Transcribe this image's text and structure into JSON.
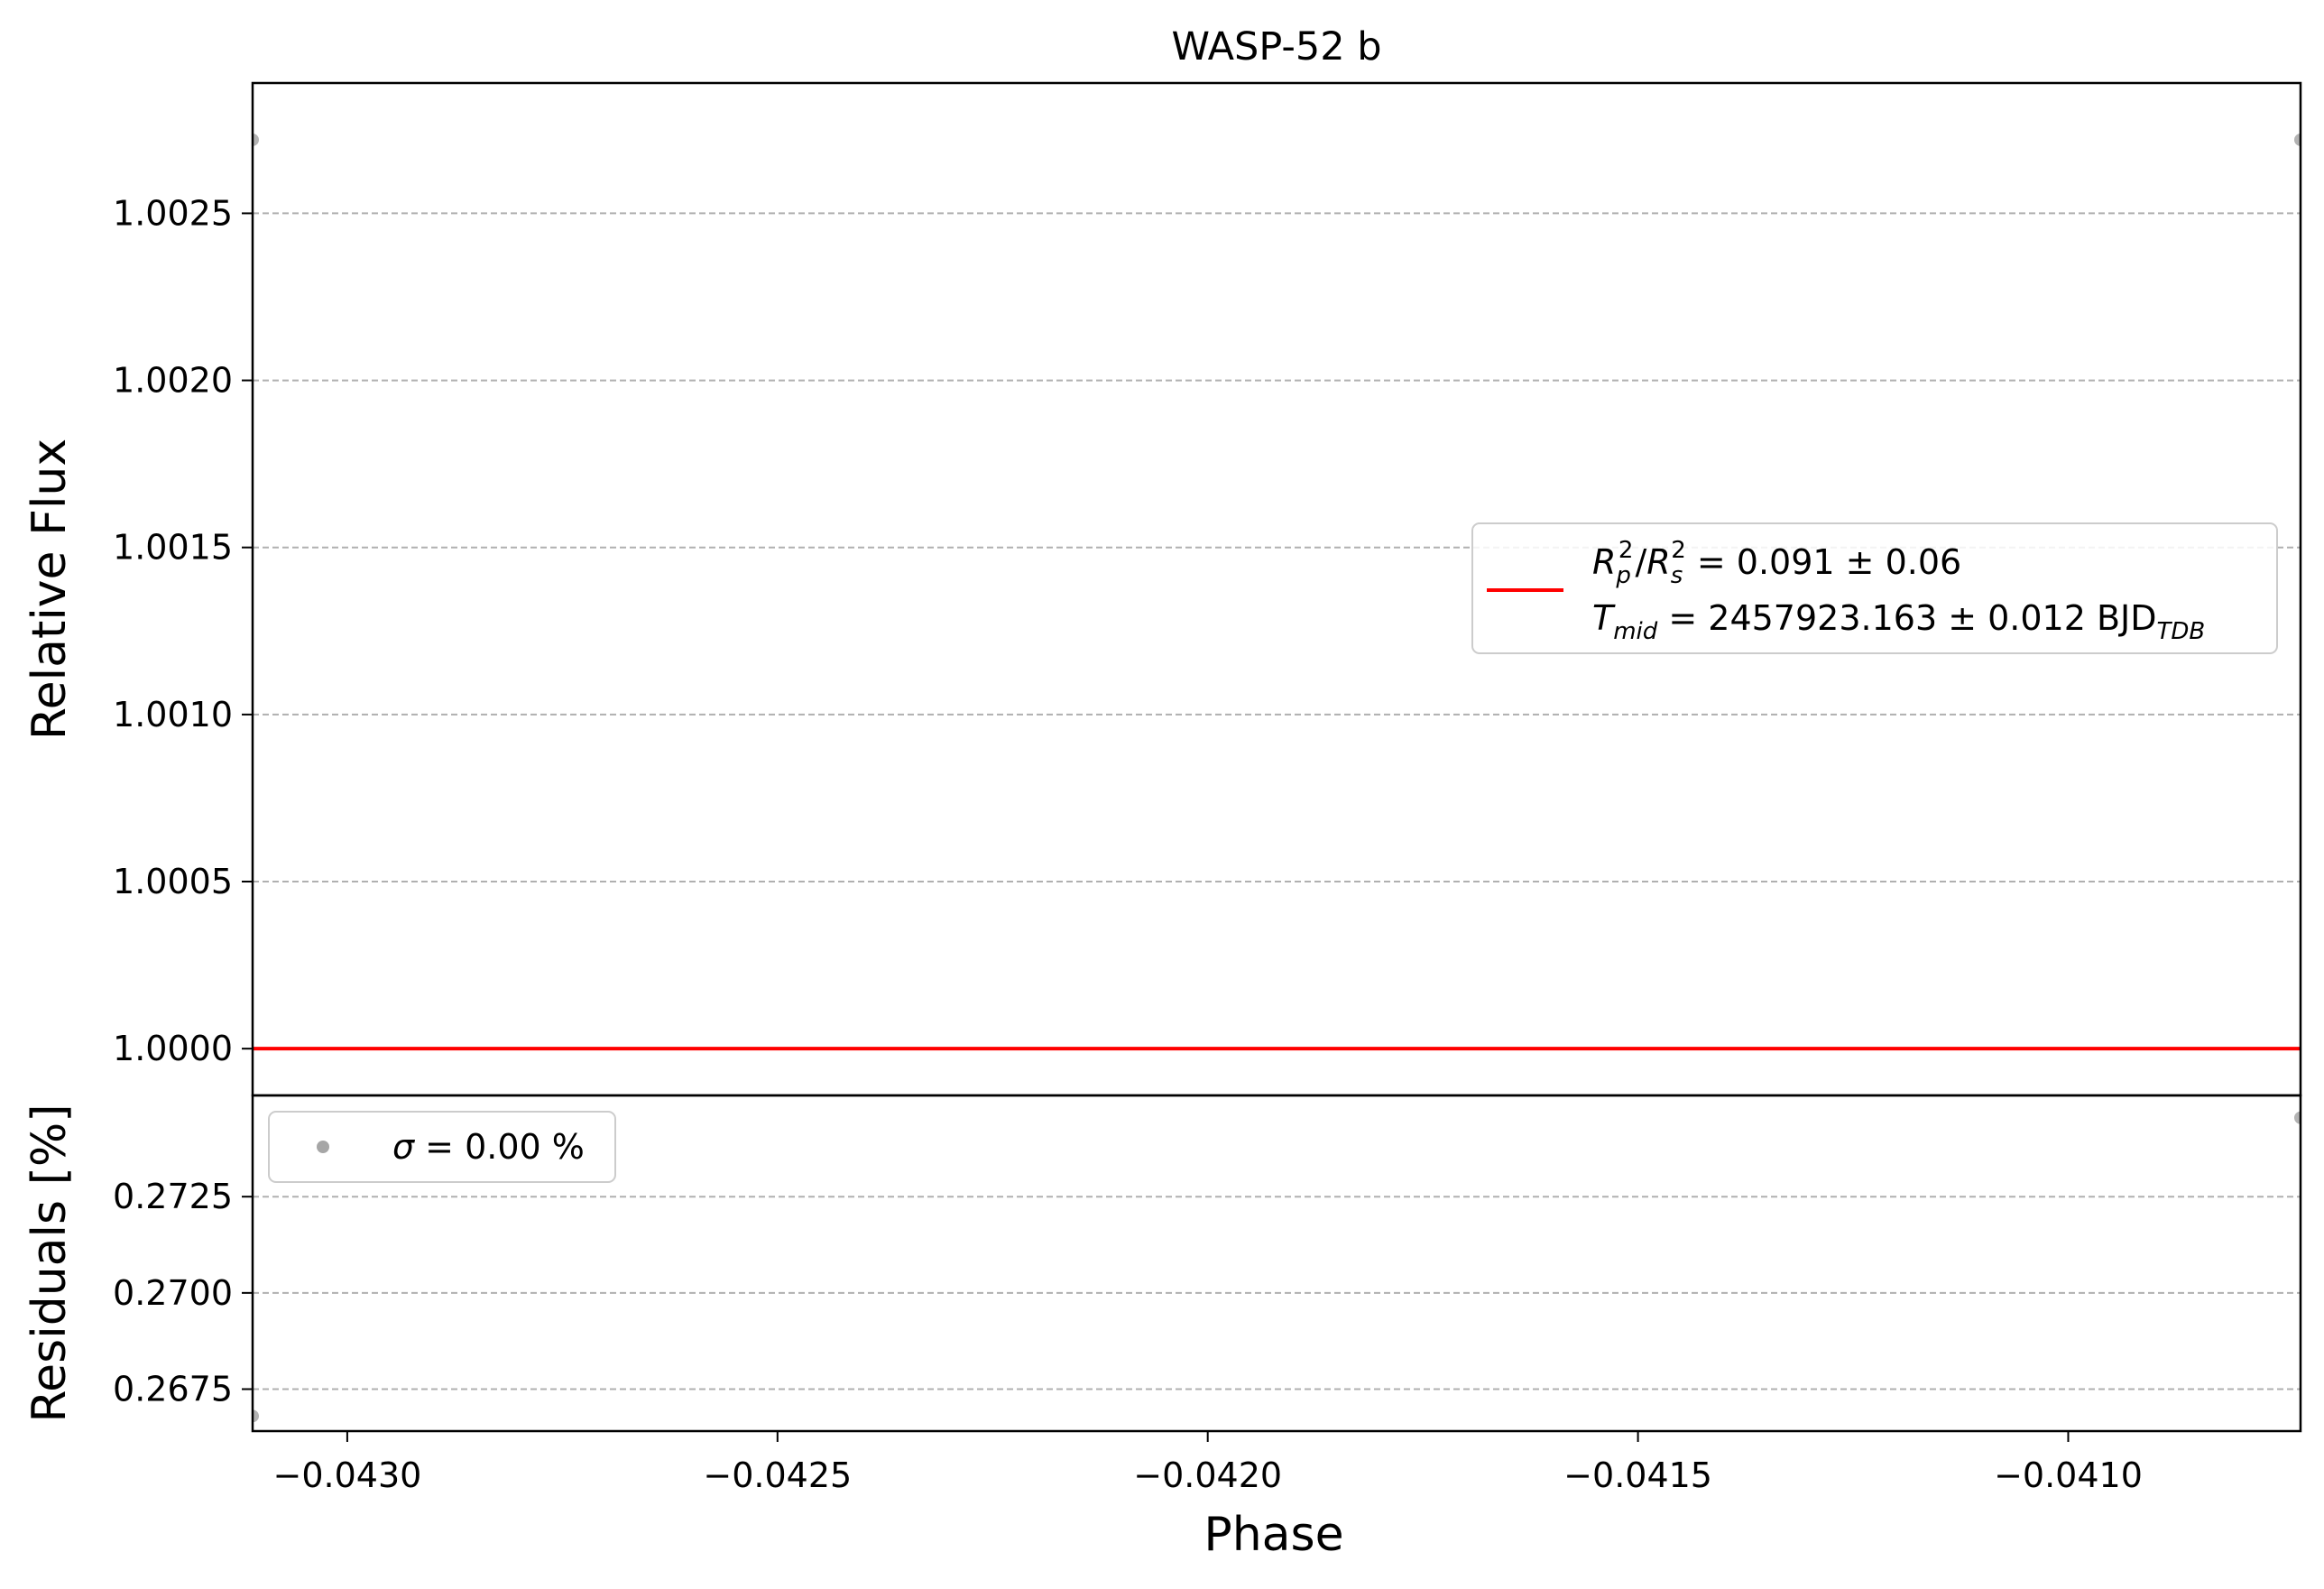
{
  "chart_data": [
    {
      "type": "scatter",
      "panel": "top",
      "title": "WASP-52 b",
      "xlabel": "",
      "ylabel": "Relative Flux",
      "xlim": [
        -0.04311,
        -0.04073
      ],
      "ylim": [
        0.99986,
        1.00289
      ],
      "x_ticks": [
        -0.043,
        -0.0425,
        -0.042,
        -0.0415,
        -0.041
      ],
      "x_tick_labels": [
        "−0.0430",
        "−0.0425",
        "−0.0420",
        "−0.0415",
        "−0.0410"
      ],
      "y_ticks": [
        1.0,
        1.0005,
        1.001,
        1.0015,
        1.002,
        1.0025
      ],
      "y_tick_labels": [
        "1.0000",
        "1.0005",
        "1.0010",
        "1.0015",
        "1.0020",
        "1.0025"
      ],
      "grid": "y-dashed",
      "series": [
        {
          "kind": "points",
          "color": "#a6a6a6",
          "points": [
            {
              "x": -0.04311,
              "y": 1.00272
            },
            {
              "x": -0.04073,
              "y": 1.00272
            }
          ]
        },
        {
          "kind": "line",
          "color": "#ff0000",
          "points": [
            {
              "x": -0.04311,
              "y": 1.0
            },
            {
              "x": -0.04073,
              "y": 1.0
            }
          ]
        }
      ],
      "legend": {
        "placement": "center-right",
        "line_color": "#ff0000",
        "entry_line1": {
          "r": "R",
          "sub_p": "p",
          "sup_2a": "2",
          "slash": "/",
          "sub_s": "s",
          "sup_2b": "2",
          "value": " = 0.091 ± 0.06"
        },
        "entry_line2": {
          "t": "T",
          "sub_mid": "mid",
          "value": " = 2457923.163 ± 0.012 BJD",
          "sub_tdb": "TDB"
        }
      }
    },
    {
      "type": "scatter",
      "panel": "bottom",
      "xlabel": "Phase",
      "ylabel": "Residuals [%]",
      "xlim": [
        -0.04311,
        -0.04073
      ],
      "ylim": [
        0.26641,
        0.27513
      ],
      "x_ticks": [
        -0.043,
        -0.0425,
        -0.042,
        -0.0415,
        -0.041
      ],
      "x_tick_labels": [
        "−0.0430",
        "−0.0425",
        "−0.0420",
        "−0.0415",
        "−0.0410"
      ],
      "y_ticks": [
        0.2675,
        0.27,
        0.2725
      ],
      "y_tick_labels": [
        "0.2675",
        "0.2700",
        "0.2725"
      ],
      "grid": "y-dashed",
      "series": [
        {
          "kind": "points",
          "color": "#a6a6a6",
          "points": [
            {
              "x": -0.04311,
              "y": 0.2668
            },
            {
              "x": -0.04073,
              "y": 0.27455
            }
          ]
        }
      ],
      "legend": {
        "placement": "top-left",
        "marker_color": "#a6a6a6",
        "sigma": "σ",
        "value": " = 0.00 %"
      }
    }
  ]
}
